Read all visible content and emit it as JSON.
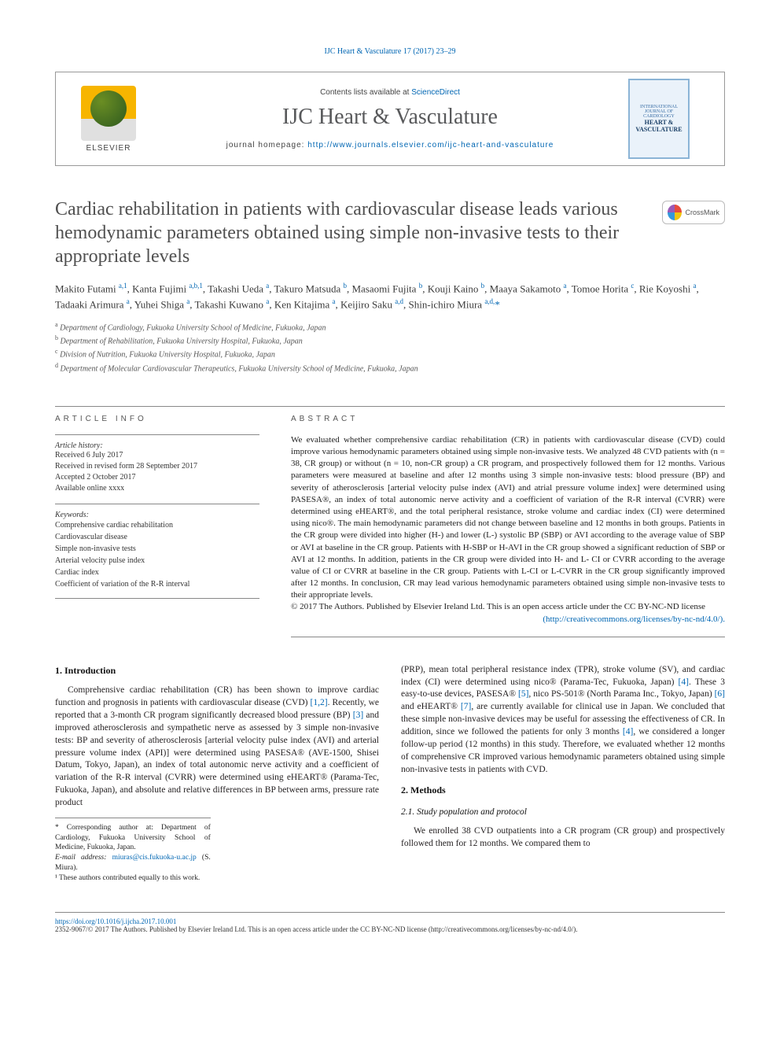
{
  "colors": {
    "link": "#0066b3",
    "text": "#231f20",
    "muted": "#58595b",
    "rule": "#888888"
  },
  "top_link": "IJC Heart & Vasculature 17 (2017) 23–29",
  "header": {
    "contents_prefix": "Contents lists available at ",
    "contents_link": "ScienceDirect",
    "journal": "IJC Heart & Vasculature",
    "homepage_prefix": "journal homepage: ",
    "homepage_url": "http://www.journals.elsevier.com/ijc-heart-and-vasculature",
    "publisher": "ELSEVIER",
    "cover_caption_top": "INTERNATIONAL JOURNAL OF CARDIOLOGY",
    "cover_caption_main": "HEART & VASCULATURE"
  },
  "crossmark_label": "CrossMark",
  "title": "Cardiac rehabilitation in patients with cardiovascular disease leads various hemodynamic parameters obtained using simple non-invasive tests to their appropriate levels",
  "authors_html": "Makito Futami <sup>a,1</sup>, Kanta Fujimi <sup>a,b,1</sup>, Takashi Ueda <sup>a</sup>, Takuro Matsuda <sup>b</sup>, Masaomi Fujita <sup>b</sup>, Kouji Kaino <sup>b</sup>, Maaya Sakamoto <sup>a</sup>, Tomoe Horita <sup>c</sup>, Rie Koyoshi <sup>a</sup>, Tadaaki Arimura <sup>a</sup>, Yuhei Shiga <sup>a</sup>, Takashi Kuwano <sup>a</sup>, Ken Kitajima <sup>a</sup>, Keijiro Saku <sup>a,d</sup>, Shin-ichiro Miura <sup>a,d,</sup><span class='star'>*</span>",
  "affiliations": {
    "a": "Department of Cardiology, Fukuoka University School of Medicine, Fukuoka, Japan",
    "b": "Department of Rehabilitation, Fukuoka University Hospital, Fukuoka, Japan",
    "c": "Division of Nutrition, Fukuoka University Hospital, Fukuoka, Japan",
    "d": "Department of Molecular Cardiovascular Therapeutics, Fukuoka University School of Medicine, Fukuoka, Japan"
  },
  "article_info": {
    "heading": "article info",
    "history_label": "Article history:",
    "history": [
      "Received 6 July 2017",
      "Received in revised form 28 September 2017",
      "Accepted 2 October 2017",
      "Available online xxxx"
    ],
    "keywords_label": "Keywords:",
    "keywords": [
      "Comprehensive cardiac rehabilitation",
      "Cardiovascular disease",
      "Simple non-invasive tests",
      "Arterial velocity pulse index",
      "Cardiac index",
      "Coefficient of variation of the R-R interval"
    ]
  },
  "abstract": {
    "heading": "abstract",
    "text": "We evaluated whether comprehensive cardiac rehabilitation (CR) in patients with cardiovascular disease (CVD) could improve various hemodynamic parameters obtained using simple non-invasive tests. We analyzed 48 CVD patients with (n = 38, CR group) or without (n = 10, non-CR group) a CR program, and prospectively followed them for 12 months. Various parameters were measured at baseline and after 12 months using 3 simple non-invasive tests: blood pressure (BP) and severity of atherosclerosis [arterial velocity pulse index (AVI) and atrial pressure volume index] were determined using PASESA®, an index of total autonomic nerve activity and a coefficient of variation of the R-R interval (CVRR) were determined using eHEART®, and the total peripheral resistance, stroke volume and cardiac index (CI) were determined using nico®. The main hemodynamic parameters did not change between baseline and 12 months in both groups. Patients in the CR group were divided into higher (H-) and lower (L-) systolic BP (SBP) or AVI according to the average value of SBP or AVI at baseline in the CR group. Patients with H-SBP or H-AVI in the CR group showed a significant reduction of SBP or AVI at 12 months. In addition, patients in the CR group were divided into H- and L- CI or CVRR according to the average value of CI or CVRR at baseline in the CR group. Patients with L-CI or L-CVRR in the CR group significantly improved after 12 months. In conclusion, CR may lead various hemodynamic parameters obtained using simple non-invasive tests to their appropriate levels.",
    "copyright": "© 2017 The Authors. Published by Elsevier Ireland Ltd. This is an open access article under the CC BY-NC-ND license",
    "license_url": "(http://creativecommons.org/licenses/by-nc-nd/4.0/)."
  },
  "intro": {
    "heading": "1. Introduction",
    "p1": "Comprehensive cardiac rehabilitation (CR) has been shown to improve cardiac function and prognosis in patients with cardiovascular disease (CVD) [1,2]. Recently, we reported that a 3-month CR program significantly decreased blood pressure (BP) [3] and improved atherosclerosis and sympathetic nerve as assessed by 3 simple non-invasive tests: BP and severity of atherosclerosis [arterial velocity pulse index (AVI) and arterial pressure volume index (API)] were determined using PASESA® (AVE-1500, Shisei Datum, Tokyo, Japan), an index of total autonomic nerve activity and a coefficient of variation of the R-R interval (CVRR) were determined using eHEART® (Parama-Tec, Fukuoka, Japan), and absolute and relative differences in BP between arms, pressure rate product",
    "p2": "(PRP), mean total peripheral resistance index (TPR), stroke volume (SV), and cardiac index (CI) were determined using nico® (Parama-Tec, Fukuoka, Japan) [4]. These 3 easy-to-use devices, PASESA® [5], nico PS-501® (North Parama Inc., Tokyo, Japan) [6] and eHEART® [7], are currently available for clinical use in Japan. We concluded that these simple non-invasive devices may be useful for assessing the effectiveness of CR. In addition, since we followed the patients for only 3 months [4], we considered a longer follow-up period (12 months) in this study. Therefore, we evaluated whether 12 months of comprehensive CR improved various hemodynamic parameters obtained using simple non-invasive tests in patients with CVD."
  },
  "methods": {
    "heading": "2. Methods",
    "sub1": "2.1. Study population and protocol",
    "p1": "We enrolled 38 CVD outpatients into a CR program (CR group) and prospectively followed them for 12 months. We compared them to"
  },
  "footnotes": {
    "corr": "* Corresponding author at: Department of Cardiology, Fukuoka University School of Medicine, Fukuoka, Japan.",
    "email_label": "E-mail address: ",
    "email": "miuras@cis.fukuoka-u.ac.jp",
    "email_who": " (S. Miura).",
    "equal": "¹ These authors contributed equally to this work."
  },
  "footer": {
    "doi": "https://doi.org/10.1016/j.ijcha.2017.10.001",
    "issn_line": "2352-9067/© 2017 The Authors. Published by Elsevier Ireland Ltd. This is an open access article under the CC BY-NC-ND license (http://creativecommons.org/licenses/by-nc-nd/4.0/)."
  }
}
